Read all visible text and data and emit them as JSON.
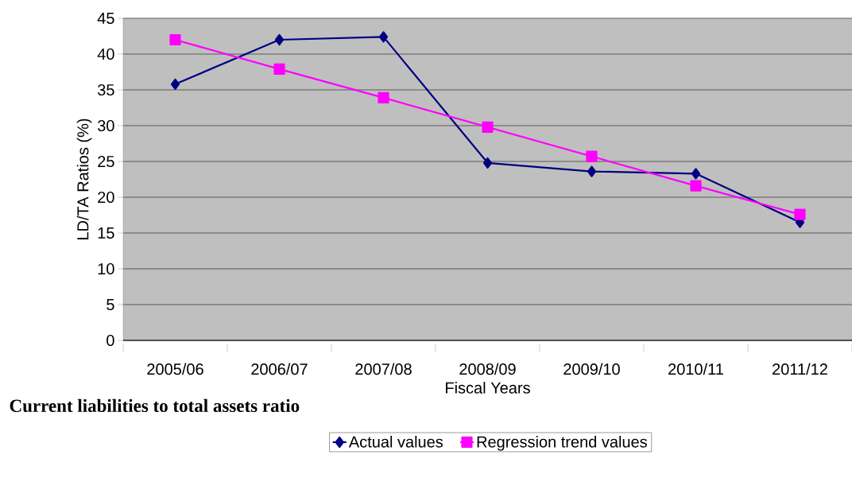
{
  "chart_data": {
    "type": "line",
    "xlabel": "Fiscal Years",
    "ylabel": "LD/TA Ratios (%)",
    "categories": [
      "2005/06",
      "2006/07",
      "2007/08",
      "2008/09",
      "2009/10",
      "2010/11",
      "2011/12"
    ],
    "series": [
      {
        "name": "Actual values",
        "color": "#000080",
        "marker": "diamond",
        "values": [
          35.8,
          42.0,
          42.4,
          24.8,
          23.6,
          23.3,
          16.5
        ]
      },
      {
        "name": "Regression trend values",
        "color": "#ff00ff",
        "marker": "square",
        "values": [
          42.0,
          37.9,
          33.9,
          29.8,
          25.7,
          21.6,
          17.6
        ]
      }
    ],
    "ylim": [
      0,
      45
    ],
    "yticks": [
      0,
      5,
      10,
      15,
      20,
      25,
      30,
      35,
      40,
      45
    ],
    "grid": "y",
    "legend": "bottom",
    "line_style": "solid",
    "annotations": [
      "Current liabilities to total assets ratio"
    ]
  }
}
